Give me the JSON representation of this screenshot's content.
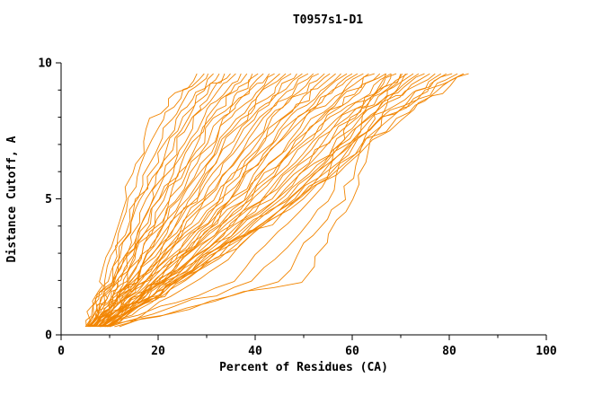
{
  "chart_data": {
    "type": "line",
    "title": "T0957s1-D1",
    "xlabel": "Percent of Residues (CA)",
    "ylabel": "Distance Cutoff, A",
    "xlim": [
      0,
      100
    ],
    "ylim": [
      0,
      10
    ],
    "x_ticks": [
      0,
      20,
      40,
      60,
      80,
      100
    ],
    "y_ticks": [
      0,
      5,
      10
    ],
    "x_minor_step": 10,
    "y_minor_step": 1,
    "grid": false,
    "legend": null,
    "line_color": "#f28500",
    "axis_color": "#000000",
    "anchor_y": [
      0.3,
      2,
      5,
      8,
      9.6
    ],
    "curves": [
      [
        5.0,
        8.5,
        13.0,
        19.0,
        28.0
      ],
      [
        5.2,
        9.0,
        14.0,
        21.0,
        29.5
      ],
      [
        5.1,
        9.6,
        15.2,
        22.5,
        30.3
      ],
      [
        5.4,
        10.2,
        16.0,
        24.0,
        31.4
      ],
      [
        5.3,
        10.0,
        16.8,
        25.0,
        32.6
      ],
      [
        5.6,
        11.0,
        17.5,
        26.0,
        33.7
      ],
      [
        5.5,
        11.4,
        18.3,
        27.2,
        34.9
      ],
      [
        5.8,
        11.2,
        19.0,
        28.0,
        36.0
      ],
      [
        5.7,
        12.0,
        19.8,
        29.0,
        37.1
      ],
      [
        6.0,
        12.5,
        20.5,
        30.2,
        38.3
      ],
      [
        5.9,
        12.2,
        21.3,
        31.0,
        39.4
      ],
      [
        6.2,
        13.0,
        22.0,
        32.0,
        40.6
      ],
      [
        6.1,
        13.5,
        22.8,
        33.2,
        41.7
      ],
      [
        6.4,
        13.2,
        23.5,
        34.0,
        42.9
      ],
      [
        6.3,
        14.0,
        24.3,
        35.0,
        44.0
      ],
      [
        6.6,
        14.5,
        25.0,
        36.2,
        45.1
      ],
      [
        6.5,
        14.2,
        25.8,
        37.0,
        46.3
      ],
      [
        6.8,
        15.0,
        26.5,
        38.0,
        47.4
      ],
      [
        6.7,
        15.5,
        27.3,
        39.2,
        48.6
      ],
      [
        7.0,
        15.2,
        28.0,
        40.0,
        49.7
      ],
      [
        6.9,
        16.0,
        28.8,
        41.0,
        50.9
      ],
      [
        7.2,
        16.5,
        29.5,
        42.2,
        52.0
      ],
      [
        7.1,
        16.2,
        30.3,
        43.0,
        53.1
      ],
      [
        7.4,
        17.0,
        31.0,
        44.0,
        54.3
      ],
      [
        7.3,
        17.5,
        31.8,
        45.2,
        55.4
      ],
      [
        7.6,
        17.2,
        32.5,
        46.0,
        56.6
      ],
      [
        7.5,
        18.0,
        33.3,
        47.0,
        57.7
      ],
      [
        7.8,
        18.5,
        34.0,
        48.2,
        58.9
      ],
      [
        7.7,
        18.2,
        34.8,
        49.0,
        60.0
      ],
      [
        8.0,
        19.0,
        35.5,
        50.0,
        61.1
      ],
      [
        7.9,
        19.5,
        36.3,
        51.2,
        62.3
      ],
      [
        8.2,
        19.2,
        37.0,
        52.0,
        63.4
      ],
      [
        8.1,
        20.0,
        37.8,
        53.0,
        64.6
      ],
      [
        8.4,
        20.5,
        38.5,
        54.2,
        65.7
      ],
      [
        8.3,
        20.2,
        39.3,
        55.0,
        66.9
      ],
      [
        8.6,
        21.0,
        40.0,
        56.0,
        68.0
      ],
      [
        8.5,
        21.5,
        40.8,
        57.2,
        69.1
      ],
      [
        8.8,
        21.2,
        41.5,
        58.0,
        70.3
      ],
      [
        8.7,
        22.0,
        42.3,
        59.0,
        71.4
      ],
      [
        9.0,
        22.5,
        43.0,
        60.2,
        72.6
      ],
      [
        8.9,
        22.2,
        43.8,
        61.0,
        73.7
      ],
      [
        9.2,
        23.0,
        44.5,
        62.0,
        74.9
      ],
      [
        9.1,
        23.5,
        45.3,
        63.2,
        76.0
      ],
      [
        9.4,
        23.2,
        46.0,
        64.0,
        77.1
      ],
      [
        9.3,
        24.0,
        46.8,
        65.0,
        78.3
      ],
      [
        9.6,
        24.5,
        47.5,
        66.2,
        79.4
      ],
      [
        9.5,
        24.2,
        48.3,
        67.0,
        80.6
      ],
      [
        9.8,
        25.0,
        49.0,
        68.0,
        81.7
      ],
      [
        9.7,
        25.5,
        49.8,
        69.2,
        82.9
      ],
      [
        10.0,
        25.2,
        50.5,
        70.0,
        84.0
      ],
      [
        10.0,
        40.0,
        55.0,
        62.0,
        68.0
      ],
      [
        12.0,
        45.0,
        58.0,
        64.0,
        70.0
      ],
      [
        9.0,
        35.0,
        52.0,
        60.0,
        67.0
      ],
      [
        8.0,
        50.0,
        60.0,
        66.0,
        71.0
      ],
      [
        11.0,
        28.0,
        48.0,
        66.0,
        83.0
      ]
    ]
  }
}
